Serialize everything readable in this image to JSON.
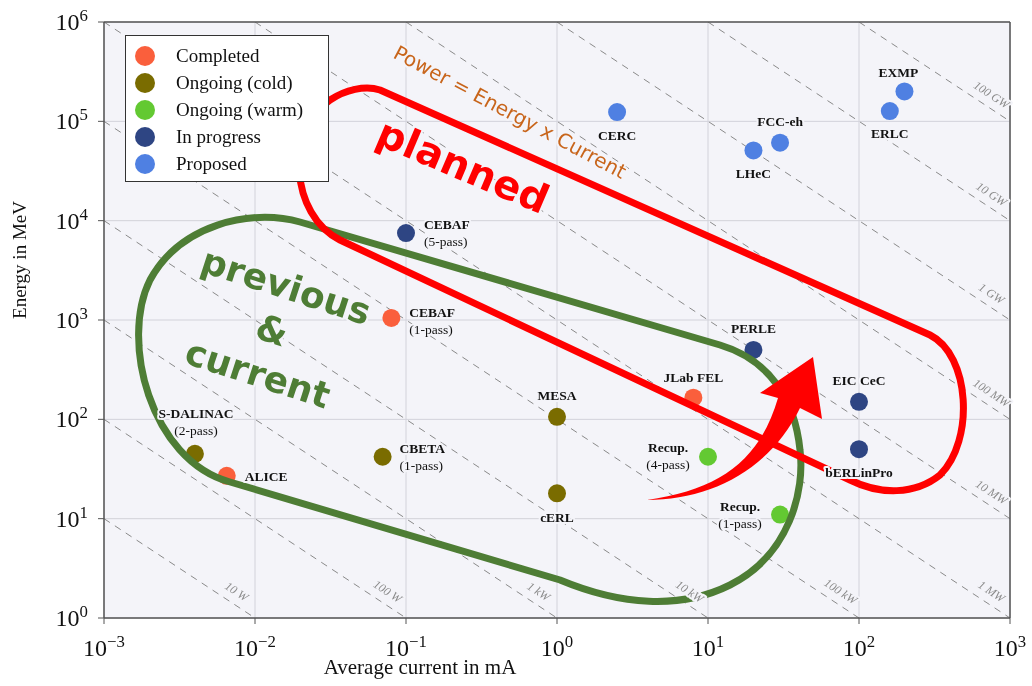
{
  "chart_data": {
    "type": "scatter",
    "xlabel": "Average current in mA",
    "ylabel": "Energy in MeV",
    "log": "xy",
    "xlim": [
      0.001,
      1000
    ],
    "ylim": [
      1,
      1000000
    ],
    "xticks": [
      {
        "value": 0.001,
        "label": "10$^{−3}$"
      },
      {
        "value": 0.01,
        "label": "10$^{−2}$"
      },
      {
        "value": 0.1,
        "label": "10$^{−1}$"
      },
      {
        "value": 1,
        "label": "10$^{0}$"
      },
      {
        "value": 10,
        "label": "10$^{1}$"
      },
      {
        "value": 100,
        "label": "10$^{2}$"
      },
      {
        "value": 1000,
        "label": "10$^{3}$"
      }
    ],
    "yticks": [
      {
        "value": 1,
        "label": "10$^{0}$"
      },
      {
        "value": 10,
        "label": "10$^{1}$"
      },
      {
        "value": 100,
        "label": "10$^{2}$"
      },
      {
        "value": 1000,
        "label": "10$^{3}$"
      },
      {
        "value": 10000,
        "label": "10$^{4}$"
      },
      {
        "value": 100000,
        "label": "10$^{5}$"
      },
      {
        "value": 1000000,
        "label": "10$^{6}$"
      }
    ],
    "grid": true,
    "legend": "top left",
    "marker": "circle",
    "series": [
      {
        "name": "10 W",
        "type": "line",
        "color": "#8a8a8a",
        "line_style": "dashed",
        "marker": "none",
        "x": [
          0.001,
          0.01
        ],
        "values": [
          10,
          1
        ]
      },
      {
        "name": "100 W",
        "type": "line",
        "color": "#8a8a8a",
        "line_style": "dashed",
        "marker": "none",
        "x": [
          0.001,
          0.1
        ],
        "values": [
          100,
          1
        ]
      },
      {
        "name": "1 kW",
        "type": "line",
        "color": "#8a8a8a",
        "line_style": "dashed",
        "marker": "none",
        "x": [
          0.001,
          1
        ],
        "values": [
          1000,
          1
        ]
      },
      {
        "name": "10 kW",
        "type": "line",
        "color": "#8a8a8a",
        "line_style": "dashed",
        "marker": "none",
        "x": [
          0.001,
          10
        ],
        "values": [
          10000,
          1
        ]
      },
      {
        "name": "100 kW",
        "type": "line",
        "color": "#8a8a8a",
        "line_style": "dashed",
        "marker": "none",
        "x": [
          0.001,
          100
        ],
        "values": [
          100000,
          1
        ]
      },
      {
        "name": "1 MW",
        "type": "line",
        "color": "#8a8a8a",
        "line_style": "dashed",
        "marker": "none",
        "x": [
          0.001,
          1000
        ],
        "values": [
          1000000,
          1
        ]
      },
      {
        "name": "10 MW",
        "type": "line",
        "color": "#8a8a8a",
        "line_style": "dashed",
        "marker": "none",
        "x": [
          0.01,
          1000
        ],
        "values": [
          1000000,
          10
        ]
      },
      {
        "name": "100 MW",
        "type": "line",
        "color": "#8a8a8a",
        "line_style": "dashed",
        "marker": "none",
        "x": [
          0.1,
          1000
        ],
        "values": [
          1000000,
          100
        ]
      },
      {
        "name": "1 GW",
        "type": "line",
        "color": "#8a8a8a",
        "line_style": "dashed",
        "marker": "none",
        "x": [
          1,
          1000
        ],
        "values": [
          1000000,
          1000
        ]
      },
      {
        "name": "10 GW",
        "type": "line",
        "color": "#8a8a8a",
        "line_style": "dashed",
        "marker": "none",
        "x": [
          10,
          1000
        ],
        "values": [
          1000000,
          10000
        ]
      },
      {
        "name": "100 GW",
        "type": "line",
        "color": "#8a8a8a",
        "line_style": "dashed",
        "marker": "none",
        "x": [
          100,
          1000
        ],
        "values": [
          1000000,
          100000
        ]
      },
      {
        "name": "Completed",
        "type": "scatter",
        "color": "#fa5f3c",
        "x": [
          0.08,
          0.0065,
          8
        ],
        "values": [
          1050,
          27,
          165
        ]
      },
      {
        "name": "Ongoing (cold)",
        "type": "scatter",
        "color": "#7a6c00",
        "x": [
          0.004,
          0.07,
          1,
          1
        ],
        "values": [
          45,
          42,
          106,
          18
        ]
      },
      {
        "name": "Ongoing (warm)",
        "type": "scatter",
        "color": "#63c932",
        "x": [
          10,
          30
        ],
        "values": [
          42,
          11
        ]
      },
      {
        "name": "In progress",
        "type": "scatter",
        "color": "#2e4583",
        "x": [
          0.1,
          20,
          100,
          100
        ],
        "values": [
          7500,
          500,
          150,
          50
        ]
      },
      {
        "name": "Proposed",
        "type": "scatter",
        "color": "#4f80e2",
        "x": [
          2.5,
          20,
          30,
          160,
          200
        ],
        "values": [
          124000,
          51000,
          61000,
          127000,
          200000
        ]
      }
    ],
    "annotations": [
      "Power = Energy x Current",
      "planned",
      "previous\n&\ncurrent",
      {
        "text": "CEBAF\n(5-pass)",
        "x": 0.1,
        "y": 7500
      },
      {
        "text": "CEBAF\n(1-pass)",
        "x": 0.08,
        "y": 1050
      },
      {
        "text": "ALICE",
        "x": 0.0065,
        "y": 27
      },
      {
        "text": "JLab FEL",
        "x": 8,
        "y": 165
      },
      {
        "text": "S-DALINAC\n(2-pass)",
        "x": 0.004,
        "y": 45
      },
      {
        "text": "CBETA\n(1-pass)",
        "x": 0.07,
        "y": 42
      },
      {
        "text": "MESA",
        "x": 1,
        "y": 106
      },
      {
        "text": "cERL",
        "x": 1,
        "y": 18
      },
      {
        "text": "Recup.\n(4-pass)",
        "x": 10,
        "y": 42
      },
      {
        "text": "Recup.\n(1-pass)",
        "x": 30,
        "y": 11
      },
      {
        "text": "PERLE",
        "x": 20,
        "y": 500
      },
      {
        "text": "EIC CeC",
        "x": 100,
        "y": 150
      },
      {
        "text": "bERLinPro",
        "x": 100,
        "y": 50
      },
      {
        "text": "CERC",
        "x": 2.5,
        "y": 124000
      },
      {
        "text": "LHeC",
        "x": 20,
        "y": 51000
      },
      {
        "text": "FCC-eh",
        "x": 30,
        "y": 61000
      },
      {
        "text": "ERLC",
        "x": 160,
        "y": 127000
      },
      {
        "text": "EXMP",
        "x": 200,
        "y": 200000
      }
    ]
  }
}
